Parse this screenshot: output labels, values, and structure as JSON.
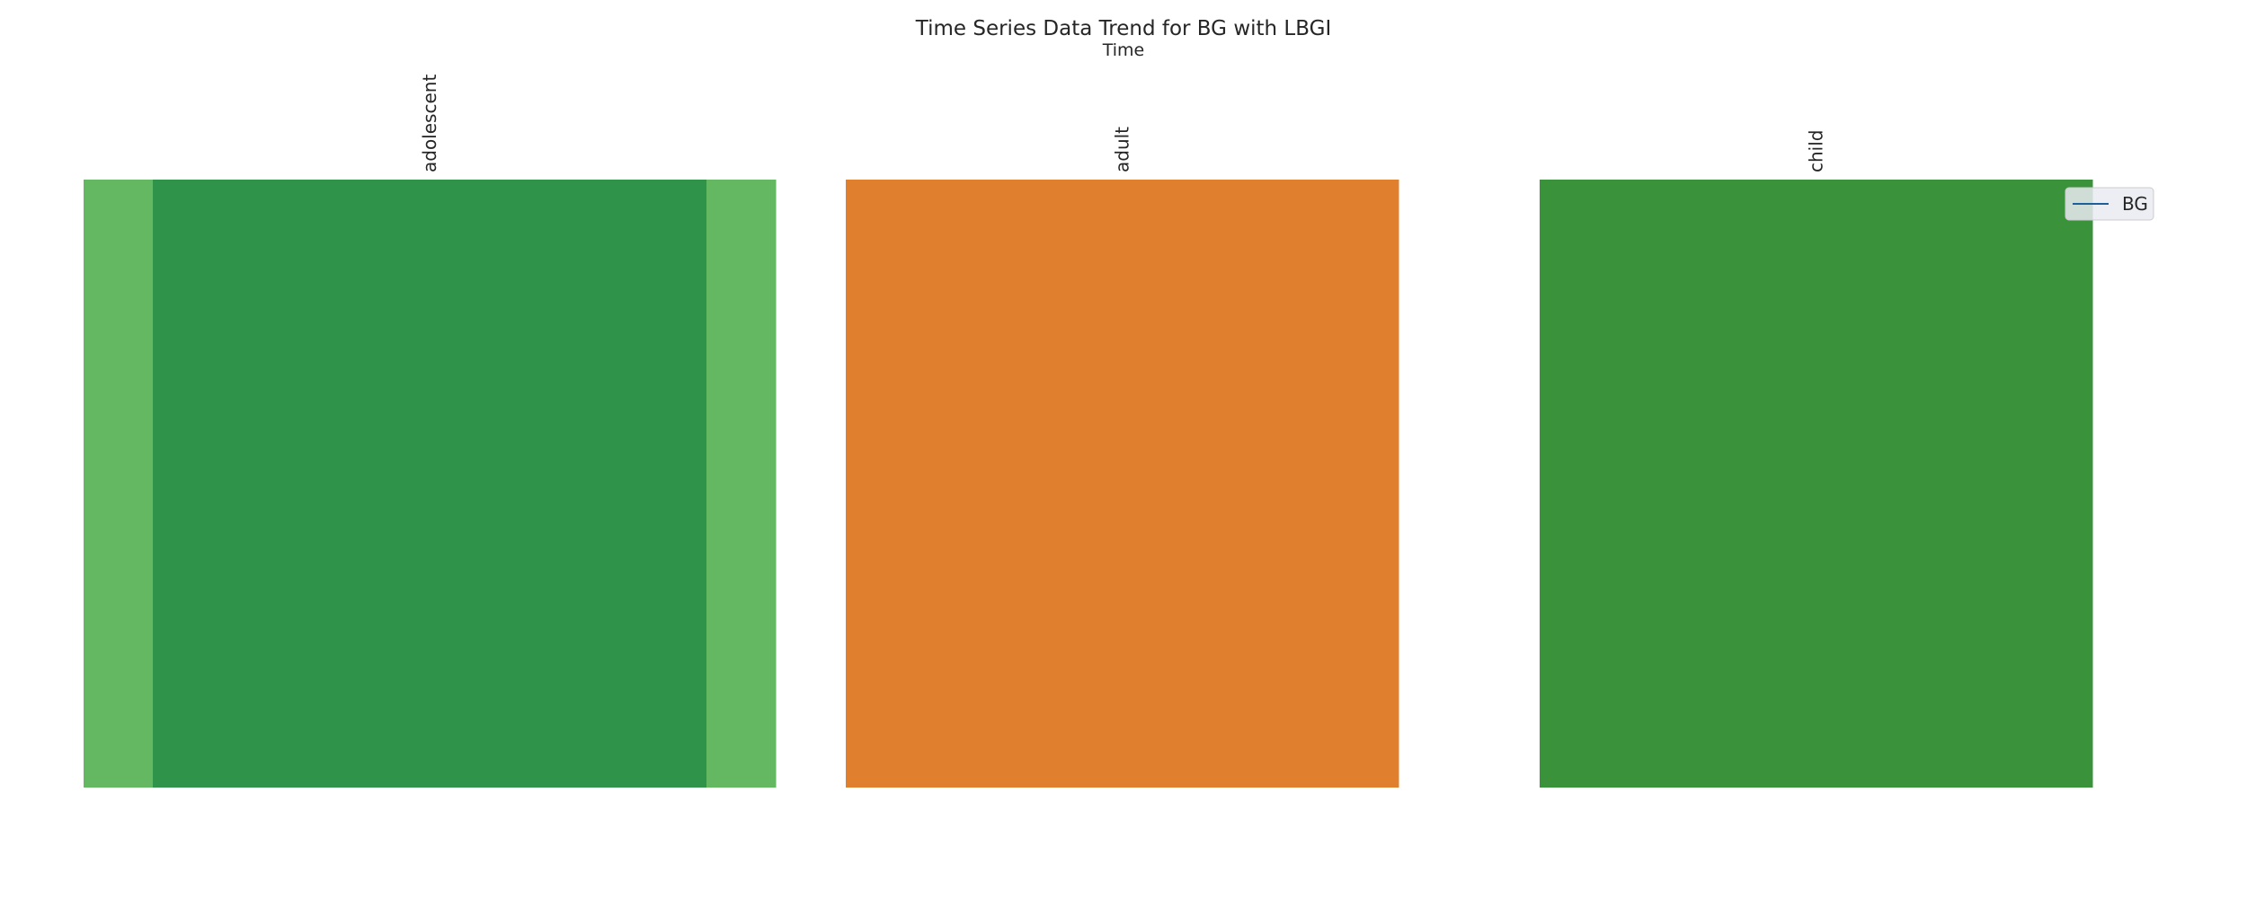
{
  "chart_data": {
    "type": "heatmap",
    "title": "Time Series Data Trend for BG with LBGI",
    "xlabel": "Time",
    "categories": [
      "adolescent",
      "adult",
      "child"
    ],
    "legend": {
      "entries": [
        "BG"
      ],
      "placement": "top-right"
    },
    "grid": false,
    "series": [
      {
        "name": "BG",
        "values": [
          {
            "category": "adolescent",
            "bands": [
              "#64b862",
              "#2f944a",
              "#64b862"
            ],
            "band_widths": [
              0.1,
              0.8,
              0.1
            ]
          },
          {
            "category": "adult",
            "bands": [
              "#e0802f"
            ],
            "band_widths": [
              1.0
            ]
          },
          {
            "category": "child",
            "bands": [
              "#3a923b"
            ],
            "band_widths": [
              1.0
            ]
          }
        ]
      }
    ],
    "legend_line_color": "#1f5f99"
  }
}
